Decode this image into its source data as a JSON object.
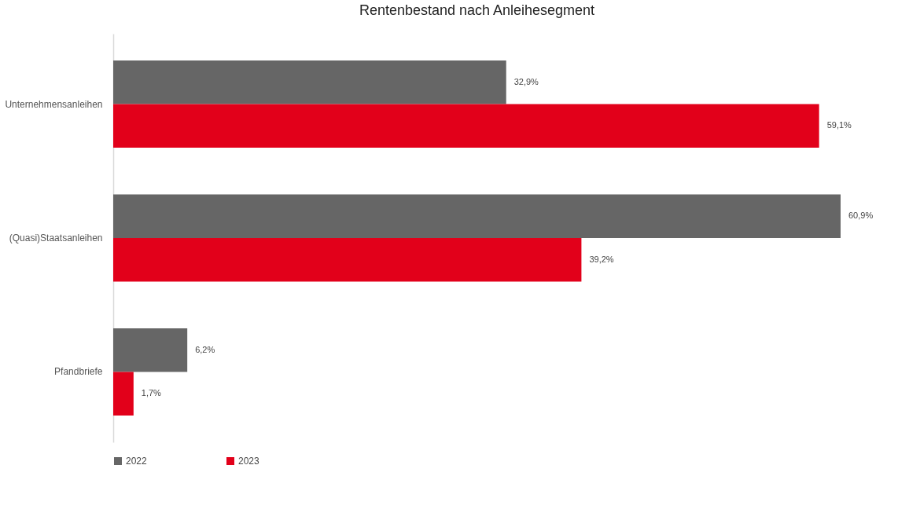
{
  "chart_data": {
    "type": "bar",
    "orientation": "horizontal",
    "title": "Rentenbestand nach Anleihesegment",
    "categories": [
      "Unternehmensanleihen",
      "(Quasi)Staatsanleihen",
      "Pfandbriefe"
    ],
    "series": [
      {
        "name": "2022",
        "color": "#666666",
        "values": [
          32.9,
          60.9,
          6.2
        ],
        "value_labels": [
          "32,9%",
          "60,9%",
          "6,2%"
        ]
      },
      {
        "name": "2023",
        "color": "#e2001a",
        "values": [
          59.1,
          39.2,
          1.7
        ],
        "value_labels": [
          "59,1%",
          "39,2%",
          "1,7%"
        ]
      }
    ],
    "legend": "bottom"
  }
}
